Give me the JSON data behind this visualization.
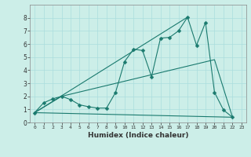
{
  "xlabel": "Humidex (Indice chaleur)",
  "bg_color": "#cceee8",
  "line_color": "#1a7a6e",
  "grid_color": "#aadddd",
  "xlim": [
    -0.5,
    23.5
  ],
  "ylim": [
    0,
    9
  ],
  "xticks": [
    0,
    1,
    2,
    3,
    4,
    5,
    6,
    7,
    8,
    9,
    10,
    11,
    12,
    13,
    14,
    15,
    16,
    17,
    18,
    19,
    20,
    21,
    22,
    23
  ],
  "yticks": [
    0,
    1,
    2,
    3,
    4,
    5,
    6,
    7,
    8
  ],
  "line1_x": [
    0,
    1,
    2,
    3,
    4,
    5,
    6,
    7,
    8,
    9,
    10,
    11,
    12,
    13,
    14,
    15,
    16,
    17,
    18,
    19,
    20,
    21,
    22
  ],
  "line1_y": [
    0.75,
    1.5,
    1.8,
    2.0,
    1.75,
    1.35,
    1.2,
    1.1,
    1.1,
    2.3,
    4.65,
    5.6,
    5.5,
    3.5,
    6.45,
    6.5,
    7.0,
    8.05,
    5.9,
    7.65,
    2.3,
    0.95,
    0.4
  ],
  "line2_x": [
    0,
    3,
    20,
    22
  ],
  "line2_y": [
    0.75,
    2.0,
    4.8,
    0.4
  ],
  "line3_x": [
    0,
    22
  ],
  "line3_y": [
    0.75,
    0.4
  ],
  "line4_x": [
    0,
    17
  ],
  "line4_y": [
    0.75,
    8.05
  ]
}
